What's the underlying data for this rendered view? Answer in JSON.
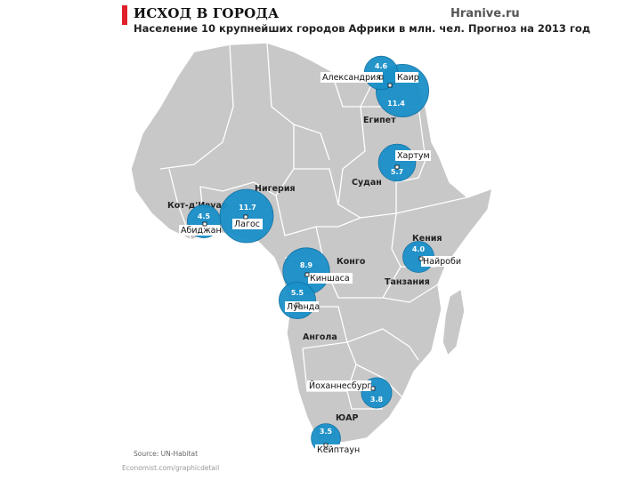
{
  "header": {
    "title": "ИСХОД В ГОРОДА",
    "subtitle": "Население 10 крупнейших городов Африки в млн. чел. Прогноз на 2013 год",
    "brand": "Hranive.ru"
  },
  "footer": {
    "source": "Source: UN-Habitat",
    "url": "Economist.com/graphicdetail"
  },
  "colors": {
    "land": "#c8c8c8",
    "border": "#ffffff",
    "bubble": "#1a90c8",
    "bubble_edge": "#0d6fa3"
  },
  "countries": [
    {
      "id": "egypt",
      "label": "Египет"
    },
    {
      "id": "sudan",
      "label": "Судан"
    },
    {
      "id": "nigeria",
      "label": "Нигерия"
    },
    {
      "id": "ivory-coast",
      "label": "Кот-д'Ивуар"
    },
    {
      "id": "kenya",
      "label": "Кения"
    },
    {
      "id": "congo",
      "label": "Конго"
    },
    {
      "id": "tanzania",
      "label": "Танзания"
    },
    {
      "id": "angola",
      "label": "Ангола"
    },
    {
      "id": "south-africa",
      "label": "ЮАР"
    }
  ],
  "cities": [
    {
      "id": "cairo",
      "name": "Каир",
      "value": "11.4",
      "population_mln": 11.4
    },
    {
      "id": "alexandria",
      "name": "Александрия",
      "value": "4.6",
      "population_mln": 4.6
    },
    {
      "id": "khartoum",
      "name": "Хартум",
      "value": "5.7",
      "population_mln": 5.7
    },
    {
      "id": "lagos",
      "name": "Лагос",
      "value": "11.7",
      "population_mln": 11.7
    },
    {
      "id": "abidjan",
      "name": "Абиджан",
      "value": "4.5",
      "population_mln": 4.5
    },
    {
      "id": "nairobi",
      "name": "Найроби",
      "value": "4.0",
      "population_mln": 4.0
    },
    {
      "id": "kinshasa",
      "name": "Киншаса",
      "value": "8.9",
      "population_mln": 8.9
    },
    {
      "id": "luanda",
      "name": "Луанда",
      "value": "5.5",
      "population_mln": 5.5
    },
    {
      "id": "johannesburg",
      "name": "Йоханнесбург",
      "value": "3.8",
      "population_mln": 3.8
    },
    {
      "id": "cape-town",
      "name": "Кейптаун",
      "value": "3.5",
      "population_mln": 3.5
    }
  ]
}
